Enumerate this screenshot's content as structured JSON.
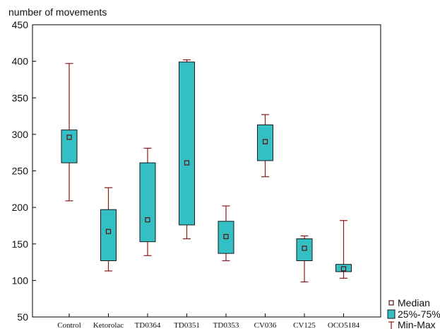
{
  "chart_data": {
    "type": "boxplot",
    "ylabel": "number of movements",
    "ylim": [
      50,
      450
    ],
    "yticks": [
      50,
      100,
      150,
      200,
      250,
      300,
      350,
      400,
      450
    ],
    "categories": [
      "Control",
      "Ketorolac",
      "TD0364",
      "TD0351",
      "TD0353",
      "CV036",
      "CV125",
      "OCO5184"
    ],
    "boxes": [
      {
        "category": "Control",
        "min": 209,
        "q1": 261,
        "median": 296,
        "q3": 306,
        "max": 397
      },
      {
        "category": "Ketorolac",
        "min": 113,
        "q1": 127,
        "median": 167,
        "q3": 197,
        "max": 227
      },
      {
        "category": "TD0364",
        "min": 134,
        "q1": 153,
        "median": 183,
        "q3": 261,
        "max": 281
      },
      {
        "category": "TD0351",
        "min": 157,
        "q1": 176,
        "median": 261,
        "q3": 399,
        "max": 402
      },
      {
        "category": "TD0353",
        "min": 127,
        "q1": 137,
        "median": 160,
        "q3": 181,
        "max": 202
      },
      {
        "category": "CV036",
        "min": 242,
        "q1": 264,
        "median": 290,
        "q3": 313,
        "max": 327
      },
      {
        "category": "CV125",
        "min": 98,
        "q1": 127,
        "median": 144,
        "q3": 157,
        "max": 161
      },
      {
        "category": "OCO5184",
        "min": 103,
        "q1": 112,
        "median": 116,
        "q3": 122,
        "max": 182
      }
    ],
    "legend": {
      "placement": "bottom-right",
      "entries": [
        "Median",
        "25%-75%",
        "Min-Max"
      ]
    },
    "grid": false
  },
  "colors": {
    "box_fill": "#33bfc3",
    "box_stroke": "#1a1a1a",
    "whisker": "#8b1a1a",
    "median_marker": "#5a1010",
    "axis": "#000000"
  }
}
